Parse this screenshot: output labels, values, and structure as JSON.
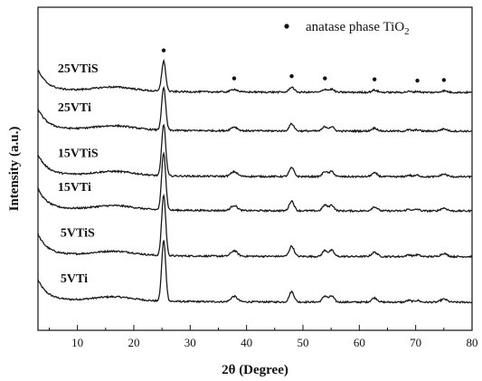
{
  "chart_data": {
    "type": "line",
    "xlabel": "2θ (Degree)",
    "ylabel": "Intensity (a.u.)",
    "xlim": [
      3,
      80
    ],
    "xticks": [
      10,
      20,
      30,
      40,
      50,
      60,
      70,
      80
    ],
    "y_tick_labels_shown": false,
    "grid": false,
    "legend": {
      "marker": "•",
      "label_prefix": "anatase phase TiO",
      "label_subscript": "2",
      "placement": "top-right"
    },
    "peak_markers_x": [
      25.3,
      37.8,
      48.0,
      53.9,
      62.7,
      70.3,
      75.0
    ],
    "peaks": [
      {
        "x": 25.3,
        "height": 1.0,
        "width": 0.5
      },
      {
        "x": 37.8,
        "height": 0.09,
        "width": 0.8
      },
      {
        "x": 48.0,
        "height": 0.17,
        "width": 0.6
      },
      {
        "x": 53.9,
        "height": 0.1,
        "width": 0.6
      },
      {
        "x": 55.1,
        "height": 0.1,
        "width": 0.6
      },
      {
        "x": 62.7,
        "height": 0.07,
        "width": 0.7
      },
      {
        "x": 68.8,
        "height": 0.03,
        "width": 0.6
      },
      {
        "x": 70.3,
        "height": 0.03,
        "width": 0.6
      },
      {
        "x": 75.0,
        "height": 0.05,
        "width": 0.8
      }
    ],
    "series": [
      {
        "name": "5VTi",
        "label_x": 7.0,
        "offset": 0.0,
        "peak_scale": 1.0
      },
      {
        "name": "5VTiS",
        "label_x": 7.0,
        "offset": 1.0,
        "peak_scale": 1.0
      },
      {
        "name": "15VTi",
        "label_x": 6.5,
        "offset": 2.0,
        "peak_scale": 0.95
      },
      {
        "name": "15VTiS",
        "label_x": 6.5,
        "offset": 2.75,
        "peak_scale": 0.85
      },
      {
        "name": "25VTi",
        "label_x": 6.5,
        "offset": 3.75,
        "peak_scale": 0.7
      },
      {
        "name": "25VTiS",
        "label_x": 6.5,
        "offset": 4.6,
        "peak_scale": 0.5
      }
    ]
  }
}
